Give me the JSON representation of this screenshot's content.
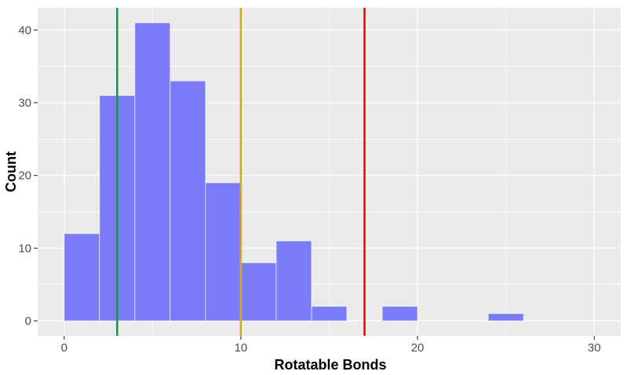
{
  "chart_data": {
    "type": "bar",
    "xlabel": "Rotatable Bonds",
    "ylabel": "Count",
    "title": "",
    "bin_width": 2,
    "bins": [
      {
        "x_start": 0,
        "x_end": 2,
        "count": 12
      },
      {
        "x_start": 2,
        "x_end": 4,
        "count": 31
      },
      {
        "x_start": 4,
        "x_end": 6,
        "count": 41
      },
      {
        "x_start": 6,
        "x_end": 8,
        "count": 33
      },
      {
        "x_start": 8,
        "x_end": 10,
        "count": 19
      },
      {
        "x_start": 10,
        "x_end": 12,
        "count": 8
      },
      {
        "x_start": 12,
        "x_end": 14,
        "count": 11
      },
      {
        "x_start": 14,
        "x_end": 16,
        "count": 2
      },
      {
        "x_start": 18,
        "x_end": 20,
        "count": 2
      },
      {
        "x_start": 24,
        "x_end": 26,
        "count": 1
      }
    ],
    "xlim": [
      -1.5,
      31.5
    ],
    "ylim": [
      -2.05,
      43.05
    ],
    "x_ticks": [
      0,
      10,
      20,
      30
    ],
    "y_ticks": [
      0,
      10,
      20,
      30,
      40
    ],
    "reference_lines": [
      {
        "x": 3,
        "color": "#2e8b57"
      },
      {
        "x": 10,
        "color": "#daa520"
      },
      {
        "x": 17,
        "color": "#ff0000"
      }
    ],
    "bar_color": "#7b7bf7",
    "panel_color": "#ebebeb",
    "grid": true
  }
}
